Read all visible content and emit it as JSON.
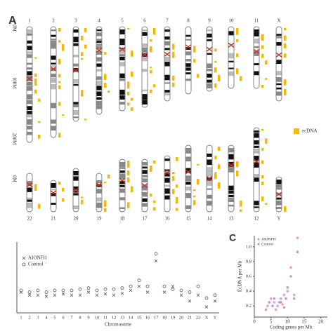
{
  "ideogram": {
    "panel_label": "A",
    "axis_labels": [
      "0M",
      "100M",
      "200M",
      "0M"
    ],
    "top_row": [
      "1",
      "2",
      "3",
      "4",
      "5",
      "6",
      "7",
      "8",
      "9",
      "10",
      "11",
      "X"
    ],
    "bottom_row": [
      "22",
      "21",
      "20",
      "19",
      "18",
      "17",
      "16",
      "15",
      "14",
      "13",
      "12",
      "Y"
    ],
    "legend": "ecDNA",
    "legend_color": "#f5b800"
  },
  "chart_data": [
    {
      "type": "scatter",
      "xlabel": "Chromosome",
      "categories": [
        "1",
        "2",
        "3",
        "4",
        "5",
        "6",
        "7",
        "8",
        "9",
        "10",
        "11",
        "12",
        "13",
        "14",
        "15",
        "16",
        "17",
        "18",
        "19",
        "20",
        "21",
        "22",
        "X",
        "Y"
      ],
      "ylim": [
        0,
        1.2
      ],
      "series": [
        {
          "name": "AIONFH",
          "marker": "x",
          "color": "#555555",
          "values": [
            0.35,
            0.3,
            0.3,
            0.28,
            0.3,
            0.32,
            0.3,
            0.3,
            0.35,
            0.3,
            0.32,
            0.3,
            0.33,
            0.38,
            0.45,
            0.35,
            0.88,
            0.35,
            0.45,
            0.3,
            0.2,
            0.3,
            0.1,
            0.2
          ]
        },
        {
          "name": "Control",
          "marker": "o",
          "color": "#555555",
          "values": [
            0.38,
            0.35,
            0.38,
            0.35,
            0.38,
            0.38,
            0.38,
            0.4,
            0.42,
            0.38,
            0.4,
            0.4,
            0.42,
            0.45,
            0.55,
            0.45,
            1.0,
            0.45,
            0.4,
            0.38,
            0.35,
            0.45,
            0.25,
            0.3
          ]
        }
      ]
    },
    {
      "type": "scatter",
      "panel_label": "C",
      "xlabel": "Coding genes per Mb",
      "ylabel": "EcDNA per Mb",
      "xlim": [
        0,
        22
      ],
      "xticks": [
        0,
        5,
        10,
        15,
        20
      ],
      "ylim": [
        0.05,
        1.15
      ],
      "yticks": [
        {
          "value": 0.2,
          "label": "0.2"
        },
        {
          "value": 0.4,
          "label": "0.4"
        },
        {
          "value": 0.6,
          "label": "0.6"
        },
        {
          "value": 0.8,
          "label": "0.8"
        },
        {
          "value": 1.0,
          "label": "1.0"
        }
      ],
      "series": [
        {
          "name": "AIONFH",
          "color": "#f08cb0",
          "x": [
            4,
            5,
            6,
            7,
            8,
            9,
            10,
            11,
            12,
            13,
            6.5,
            8.5
          ],
          "values": [
            0.2,
            0.3,
            0.25,
            0.2,
            0.3,
            0.35,
            0.4,
            0.72,
            0.35,
            1.12,
            0.15,
            0.22
          ]
        },
        {
          "name": "Control",
          "color": "#a98be0",
          "x": [
            3.5,
            5.5,
            6,
            7.5,
            8,
            9.5,
            10,
            11,
            12,
            13,
            9,
            4.5
          ],
          "values": [
            0.15,
            0.2,
            0.3,
            0.25,
            0.25,
            0.3,
            0.45,
            0.6,
            0.3,
            0.93,
            0.18,
            0.25
          ]
        }
      ]
    }
  ]
}
